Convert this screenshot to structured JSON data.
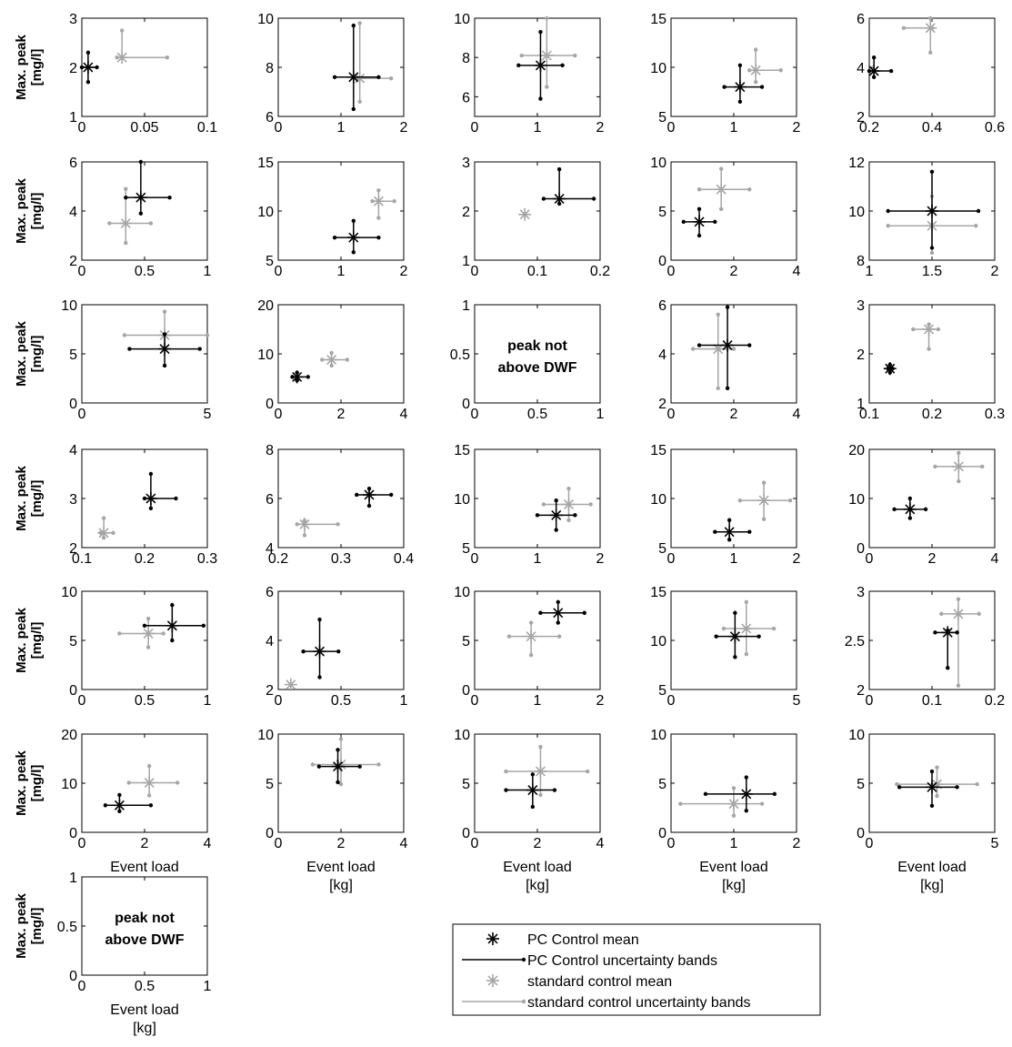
{
  "colors": {
    "pc": "#000000",
    "std": "#a6a6a6"
  },
  "labels": {
    "y_line1": "Max. peak",
    "y_line2": "[mg/l]",
    "x_line1": "Event load",
    "x_line2": "[kg]",
    "note_line1": "peak not",
    "note_line2": "above DWF"
  },
  "legend": {
    "placement": "bottom-center",
    "entries": [
      {
        "label": "PC Control mean",
        "series": "pc",
        "kind": "mean"
      },
      {
        "label": "PC Control uncertainty bands",
        "series": "pc",
        "kind": "band"
      },
      {
        "label": "standard control mean",
        "series": "std",
        "kind": "mean"
      },
      {
        "label": "standard control uncertainty bands",
        "series": "std",
        "kind": "band"
      }
    ]
  },
  "chart_data": [
    {
      "type": "scatter",
      "xlim": [
        0,
        0.1
      ],
      "ylim": [
        1,
        3
      ],
      "xticks": [
        "0",
        "0.05",
        "0.1"
      ],
      "yticks": [
        "1",
        "2",
        "3"
      ],
      "pc": {
        "x": 0.005,
        "y": 2.0,
        "xlo": 0.0,
        "xhi": 0.012,
        "ylo": 1.7,
        "yhi": 2.3
      },
      "std": {
        "x": 0.032,
        "y": 2.2,
        "xlo": 0.028,
        "xhi": 0.068,
        "ylo": 2.2,
        "yhi": 2.75
      }
    },
    {
      "type": "scatter",
      "xlim": [
        0,
        2
      ],
      "ylim": [
        6,
        10
      ],
      "xticks": [
        "0",
        "1",
        "2"
      ],
      "yticks": [
        "6",
        "8",
        "10"
      ],
      "pc": {
        "x": 1.2,
        "y": 7.6,
        "xlo": 0.9,
        "xhi": 1.6,
        "ylo": 6.3,
        "yhi": 9.7
      },
      "std": {
        "x": 1.3,
        "y": 7.55,
        "xlo": 1.25,
        "xhi": 1.8,
        "ylo": 6.6,
        "yhi": 9.8
      }
    },
    {
      "type": "scatter",
      "xlim": [
        0,
        2
      ],
      "ylim": [
        5,
        10
      ],
      "xticks": [
        "0",
        "1",
        "2"
      ],
      "yticks": [
        "6",
        "8",
        "10"
      ],
      "pc": {
        "x": 1.05,
        "y": 7.6,
        "xlo": 0.7,
        "xhi": 1.4,
        "ylo": 5.9,
        "yhi": 9.3
      },
      "std": {
        "x": 1.15,
        "y": 8.1,
        "xlo": 0.75,
        "xhi": 1.6,
        "ylo": 6.5,
        "yhi": 10.0
      }
    },
    {
      "type": "scatter",
      "xlim": [
        0,
        2
      ],
      "ylim": [
        5,
        15
      ],
      "xticks": [
        "0",
        "1",
        "2"
      ],
      "yticks": [
        "5",
        "10",
        "15"
      ],
      "pc": {
        "x": 1.1,
        "y": 8.0,
        "xlo": 0.85,
        "xhi": 1.45,
        "ylo": 6.5,
        "yhi": 10.2
      },
      "std": {
        "x": 1.35,
        "y": 9.7,
        "xlo": 1.25,
        "xhi": 1.75,
        "ylo": 8.5,
        "yhi": 11.8
      }
    },
    {
      "type": "scatter",
      "xlim": [
        0.2,
        0.6
      ],
      "ylim": [
        2,
        6
      ],
      "xticks": [
        "0.2",
        "0.4",
        "0.6"
      ],
      "yticks": [
        "2",
        "4",
        "6"
      ],
      "pc": {
        "x": 0.215,
        "y": 3.85,
        "xlo": 0.2,
        "xhi": 0.27,
        "ylo": 3.6,
        "yhi": 4.4
      },
      "std": {
        "x": 0.395,
        "y": 5.6,
        "xlo": 0.31,
        "xhi": 0.4,
        "ylo": 4.6,
        "yhi": 6.0
      }
    },
    {
      "type": "scatter",
      "xlim": [
        0,
        1
      ],
      "ylim": [
        2,
        6
      ],
      "xticks": [
        "0",
        "0.5",
        "1"
      ],
      "yticks": [
        "2",
        "4",
        "6"
      ],
      "pc": {
        "x": 0.47,
        "y": 4.55,
        "xlo": 0.35,
        "xhi": 0.7,
        "ylo": 3.9,
        "yhi": 6.0
      },
      "std": {
        "x": 0.35,
        "y": 3.5,
        "xlo": 0.22,
        "xhi": 0.55,
        "ylo": 2.7,
        "yhi": 4.9
      }
    },
    {
      "type": "scatter",
      "xlim": [
        0,
        2
      ],
      "ylim": [
        5,
        15
      ],
      "xticks": [
        "0",
        "1",
        "2"
      ],
      "yticks": [
        "5",
        "10",
        "15"
      ],
      "pc": {
        "x": 1.2,
        "y": 7.3,
        "xlo": 0.9,
        "xhi": 1.6,
        "ylo": 5.8,
        "yhi": 9.0
      },
      "std": {
        "x": 1.6,
        "y": 11.0,
        "xlo": 1.5,
        "xhi": 1.85,
        "ylo": 9.3,
        "yhi": 12.1
      }
    },
    {
      "type": "scatter",
      "xlim": [
        0,
        0.2
      ],
      "ylim": [
        1,
        3
      ],
      "xticks": [
        "0",
        "0.1",
        "0.2"
      ],
      "yticks": [
        "1",
        "2",
        "3"
      ],
      "pc": {
        "x": 0.135,
        "y": 2.25,
        "xlo": 0.11,
        "xhi": 0.19,
        "ylo": 2.15,
        "yhi": 2.85
      },
      "std": {
        "x": 0.08,
        "y": 1.93,
        "xlo": 0.08,
        "xhi": 0.08,
        "ylo": 1.93,
        "yhi": 1.93
      }
    },
    {
      "type": "scatter",
      "xlim": [
        0,
        4
      ],
      "ylim": [
        0,
        10
      ],
      "xticks": [
        "0",
        "2",
        "4"
      ],
      "yticks": [
        "0",
        "5",
        "10"
      ],
      "pc": {
        "x": 0.9,
        "y": 3.9,
        "xlo": 0.4,
        "xhi": 1.4,
        "ylo": 2.5,
        "yhi": 5.2
      },
      "std": {
        "x": 1.6,
        "y": 7.2,
        "xlo": 0.9,
        "xhi": 2.5,
        "ylo": 5.2,
        "yhi": 9.3
      }
    },
    {
      "type": "scatter",
      "xlim": [
        1,
        2
      ],
      "ylim": [
        8,
        12
      ],
      "xticks": [
        "1",
        "1.5",
        "2"
      ],
      "yticks": [
        "8",
        "10",
        "12"
      ],
      "pc": {
        "x": 1.5,
        "y": 10.0,
        "xlo": 1.15,
        "xhi": 1.87,
        "ylo": 8.5,
        "yhi": 11.6
      },
      "std": {
        "x": 1.5,
        "y": 9.4,
        "xlo": 1.15,
        "xhi": 1.85,
        "ylo": 8.3,
        "yhi": 10.6
      }
    },
    {
      "type": "scatter",
      "xlim": [
        0,
        5
      ],
      "ylim": [
        0,
        10
      ],
      "xticks": [
        "0",
        "5"
      ],
      "yticks": [
        "0",
        "5",
        "10"
      ],
      "pc": {
        "x": 3.3,
        "y": 5.5,
        "xlo": 1.9,
        "xhi": 4.7,
        "ylo": 3.8,
        "yhi": 7.0
      },
      "std": {
        "x": 3.3,
        "y": 6.9,
        "xlo": 1.7,
        "xhi": 5.0,
        "ylo": 5.6,
        "yhi": 9.3
      }
    },
    {
      "type": "scatter",
      "xlim": [
        0,
        4
      ],
      "ylim": [
        0,
        20
      ],
      "xticks": [
        "0",
        "2",
        "4"
      ],
      "yticks": [
        "0",
        "10",
        "20"
      ],
      "pc": {
        "x": 0.6,
        "y": 5.3,
        "xlo": 0.45,
        "xhi": 0.95,
        "ylo": 4.6,
        "yhi": 6.2
      },
      "std": {
        "x": 1.7,
        "y": 8.8,
        "xlo": 1.4,
        "xhi": 2.2,
        "ylo": 7.6,
        "yhi": 10.2
      }
    },
    {
      "type": "text",
      "xlim": [
        0,
        1
      ],
      "ylim": [
        0,
        1
      ],
      "xticks": [
        "0",
        "0.5",
        "1"
      ],
      "yticks": [
        "0",
        "0.5",
        "1"
      ]
    },
    {
      "type": "scatter",
      "xlim": [
        0,
        4
      ],
      "ylim": [
        2,
        6
      ],
      "xticks": [
        "0",
        "2",
        "4"
      ],
      "yticks": [
        "2",
        "4",
        "6"
      ],
      "pc": {
        "x": 1.8,
        "y": 4.35,
        "xlo": 0.9,
        "xhi": 2.5,
        "ylo": 2.6,
        "yhi": 5.9
      },
      "std": {
        "x": 1.5,
        "y": 4.2,
        "xlo": 0.7,
        "xhi": 2.0,
        "ylo": 2.6,
        "yhi": 5.6
      }
    },
    {
      "type": "scatter",
      "xlim": [
        0.1,
        0.3
      ],
      "ylim": [
        1,
        3
      ],
      "xticks": [
        "0.1",
        "0.2",
        "0.3"
      ],
      "yticks": [
        "1",
        "2",
        "3"
      ],
      "pc": {
        "x": 0.133,
        "y": 1.7,
        "xlo": 0.13,
        "xhi": 0.137,
        "ylo": 1.62,
        "yhi": 1.78
      },
      "std": {
        "x": 0.195,
        "y": 2.5,
        "xlo": 0.17,
        "xhi": 0.21,
        "ylo": 2.1,
        "yhi": 2.6
      }
    },
    {
      "type": "scatter",
      "xlim": [
        0.1,
        0.3
      ],
      "ylim": [
        2,
        4
      ],
      "xticks": [
        "0.1",
        "0.2",
        "0.3"
      ],
      "yticks": [
        "2",
        "3",
        "4"
      ],
      "pc": {
        "x": 0.21,
        "y": 3.0,
        "xlo": 0.2,
        "xhi": 0.25,
        "ylo": 2.8,
        "yhi": 3.5
      },
      "std": {
        "x": 0.135,
        "y": 2.3,
        "xlo": 0.13,
        "xhi": 0.15,
        "ylo": 2.2,
        "yhi": 2.6
      }
    },
    {
      "type": "scatter",
      "xlim": [
        0.2,
        0.4
      ],
      "ylim": [
        4,
        8
      ],
      "xticks": [
        "0.2",
        "0.3",
        "0.4"
      ],
      "yticks": [
        "4",
        "6",
        "8"
      ],
      "pc": {
        "x": 0.345,
        "y": 6.15,
        "xlo": 0.325,
        "xhi": 0.38,
        "ylo": 5.7,
        "yhi": 6.4
      },
      "std": {
        "x": 0.242,
        "y": 4.95,
        "xlo": 0.23,
        "xhi": 0.295,
        "ylo": 4.5,
        "yhi": 5.1
      }
    },
    {
      "type": "scatter",
      "xlim": [
        0,
        2
      ],
      "ylim": [
        5,
        15
      ],
      "xticks": [
        "0",
        "1",
        "2"
      ],
      "yticks": [
        "5",
        "10",
        "15"
      ],
      "pc": {
        "x": 1.3,
        "y": 8.3,
        "xlo": 1.0,
        "xhi": 1.6,
        "ylo": 6.8,
        "yhi": 9.8
      },
      "std": {
        "x": 1.5,
        "y": 9.4,
        "xlo": 1.1,
        "xhi": 1.85,
        "ylo": 7.8,
        "yhi": 11.0
      }
    },
    {
      "type": "scatter",
      "xlim": [
        0,
        2
      ],
      "ylim": [
        5,
        15
      ],
      "xticks": [
        "0",
        "1",
        "2"
      ],
      "yticks": [
        "5",
        "10",
        "15"
      ],
      "pc": {
        "x": 0.93,
        "y": 6.6,
        "xlo": 0.7,
        "xhi": 1.25,
        "ylo": 5.8,
        "yhi": 7.8
      },
      "std": {
        "x": 1.48,
        "y": 9.8,
        "xlo": 1.1,
        "xhi": 1.9,
        "ylo": 7.9,
        "yhi": 11.6
      }
    },
    {
      "type": "scatter",
      "xlim": [
        0,
        4
      ],
      "ylim": [
        0,
        20
      ],
      "xticks": [
        "0",
        "2",
        "4"
      ],
      "yticks": [
        "0",
        "10",
        "20"
      ],
      "pc": {
        "x": 1.3,
        "y": 7.8,
        "xlo": 0.8,
        "xhi": 1.8,
        "ylo": 6.0,
        "yhi": 10.0
      },
      "std": {
        "x": 2.85,
        "y": 16.5,
        "xlo": 2.1,
        "xhi": 3.6,
        "ylo": 13.5,
        "yhi": 19.3
      }
    },
    {
      "type": "scatter",
      "xlim": [
        0,
        1
      ],
      "ylim": [
        0,
        10
      ],
      "xticks": [
        "0",
        "0.5",
        "1"
      ],
      "yticks": [
        "0",
        "5",
        "10"
      ],
      "pc": {
        "x": 0.72,
        "y": 6.5,
        "xlo": 0.5,
        "xhi": 0.97,
        "ylo": 5.0,
        "yhi": 8.6
      },
      "std": {
        "x": 0.53,
        "y": 5.7,
        "xlo": 0.3,
        "xhi": 0.65,
        "ylo": 4.3,
        "yhi": 7.2
      }
    },
    {
      "type": "scatter",
      "xlim": [
        0,
        1
      ],
      "ylim": [
        2,
        6
      ],
      "xticks": [
        "0",
        "0.5",
        "1"
      ],
      "yticks": [
        "2",
        "4",
        "6"
      ],
      "pc": {
        "x": 0.33,
        "y": 3.55,
        "xlo": 0.2,
        "xhi": 0.48,
        "ylo": 2.5,
        "yhi": 4.85
      },
      "std": {
        "x": 0.1,
        "y": 2.2,
        "xlo": 0.1,
        "xhi": 0.1,
        "ylo": 2.2,
        "yhi": 2.2
      }
    },
    {
      "type": "scatter",
      "xlim": [
        0,
        2
      ],
      "ylim": [
        0,
        10
      ],
      "xticks": [
        "0",
        "1",
        "2"
      ],
      "yticks": [
        "0",
        "5",
        "10"
      ],
      "pc": {
        "x": 1.33,
        "y": 7.8,
        "xlo": 1.05,
        "xhi": 1.75,
        "ylo": 6.8,
        "yhi": 8.9
      },
      "std": {
        "x": 0.9,
        "y": 5.4,
        "xlo": 0.55,
        "xhi": 1.35,
        "ylo": 3.5,
        "yhi": 6.8
      }
    },
    {
      "type": "scatter",
      "xlim": [
        0,
        5
      ],
      "ylim": [
        5,
        15
      ],
      "xticks": [
        "0",
        "5"
      ],
      "yticks": [
        "5",
        "10",
        "15"
      ],
      "pc": {
        "x": 2.55,
        "y": 10.4,
        "xlo": 1.8,
        "xhi": 3.5,
        "ylo": 8.3,
        "yhi": 12.8
      },
      "std": {
        "x": 3.0,
        "y": 11.2,
        "xlo": 2.1,
        "xhi": 4.1,
        "ylo": 8.6,
        "yhi": 13.9
      }
    },
    {
      "type": "scatter",
      "xlim": [
        0,
        0.2
      ],
      "ylim": [
        2,
        3
      ],
      "xticks": [
        "0",
        "0.1",
        "0.2"
      ],
      "yticks": [
        "2",
        "2.5",
        "3"
      ],
      "pc": {
        "x": 0.125,
        "y": 2.58,
        "xlo": 0.105,
        "xhi": 0.14,
        "ylo": 2.22,
        "yhi": 2.6
      },
      "std": {
        "x": 0.142,
        "y": 2.77,
        "xlo": 0.115,
        "xhi": 0.175,
        "ylo": 2.04,
        "yhi": 2.92
      }
    },
    {
      "type": "scatter",
      "xlim": [
        0,
        4
      ],
      "ylim": [
        0,
        20
      ],
      "xticks": [
        "0",
        "2",
        "4"
      ],
      "yticks": [
        "0",
        "10",
        "20"
      ],
      "pc": {
        "x": 1.2,
        "y": 5.5,
        "xlo": 0.75,
        "xhi": 2.2,
        "ylo": 4.3,
        "yhi": 7.6
      },
      "std": {
        "x": 2.15,
        "y": 10.1,
        "xlo": 1.5,
        "xhi": 3.05,
        "ylo": 7.5,
        "yhi": 13.5
      }
    },
    {
      "type": "scatter",
      "xlim": [
        0,
        4
      ],
      "ylim": [
        0,
        10
      ],
      "xticks": [
        "0",
        "2",
        "4"
      ],
      "yticks": [
        "0",
        "5",
        "10"
      ],
      "pc": {
        "x": 1.9,
        "y": 6.7,
        "xlo": 1.3,
        "xhi": 2.6,
        "ylo": 5.1,
        "yhi": 8.4
      },
      "std": {
        "x": 2.0,
        "y": 6.9,
        "xlo": 1.1,
        "xhi": 3.2,
        "ylo": 4.9,
        "yhi": 9.5
      }
    },
    {
      "type": "scatter",
      "xlim": [
        0,
        4
      ],
      "ylim": [
        0,
        10
      ],
      "xticks": [
        "0",
        "2",
        "4"
      ],
      "yticks": [
        "0",
        "5",
        "10"
      ],
      "pc": {
        "x": 1.85,
        "y": 4.3,
        "xlo": 1.0,
        "xhi": 2.55,
        "ylo": 2.6,
        "yhi": 5.9
      },
      "std": {
        "x": 2.1,
        "y": 6.2,
        "xlo": 1.0,
        "xhi": 3.6,
        "ylo": 3.8,
        "yhi": 8.7
      }
    },
    {
      "type": "scatter",
      "xlim": [
        0,
        2
      ],
      "ylim": [
        0,
        10
      ],
      "xticks": [
        "0",
        "1",
        "2"
      ],
      "yticks": [
        "0",
        "5",
        "10"
      ],
      "pc": {
        "x": 1.2,
        "y": 3.9,
        "xlo": 0.55,
        "xhi": 1.65,
        "ylo": 2.2,
        "yhi": 5.6
      },
      "std": {
        "x": 1.0,
        "y": 2.9,
        "xlo": 0.15,
        "xhi": 1.45,
        "ylo": 1.7,
        "yhi": 4.5
      }
    },
    {
      "type": "scatter",
      "xlim": [
        0,
        5
      ],
      "ylim": [
        0,
        10
      ],
      "xticks": [
        "0",
        "5"
      ],
      "yticks": [
        "0",
        "5",
        "10"
      ],
      "pc": {
        "x": 2.5,
        "y": 4.6,
        "xlo": 1.2,
        "xhi": 3.5,
        "ylo": 2.7,
        "yhi": 6.2
      },
      "std": {
        "x": 2.7,
        "y": 4.9,
        "xlo": 1.1,
        "xhi": 4.3,
        "ylo": 3.7,
        "yhi": 6.6
      }
    },
    {
      "type": "text",
      "xlim": [
        0,
        1
      ],
      "ylim": [
        0,
        1
      ],
      "xticks": [
        "0",
        "0.5",
        "1"
      ],
      "yticks": [
        "0",
        "0.5",
        "1"
      ]
    }
  ]
}
